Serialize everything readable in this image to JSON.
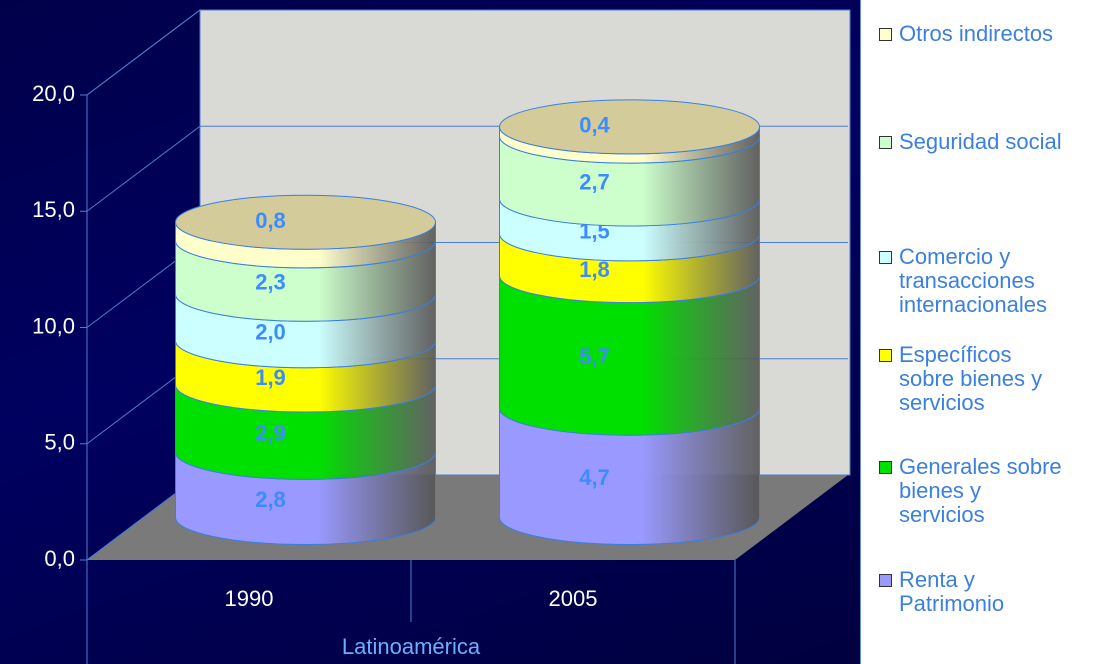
{
  "chart_data": {
    "type": "stacked_cylinder",
    "categories": [
      "1990",
      "2005"
    ],
    "xlabel": "Latinoamérica",
    "ylim": [
      0,
      20
    ],
    "yticks": [
      {
        "value": 0,
        "label": "0,0"
      },
      {
        "value": 5,
        "label": "5,0"
      },
      {
        "value": 10,
        "label": "10,0"
      },
      {
        "value": 15,
        "label": "15,0"
      },
      {
        "value": 20,
        "label": "20,0"
      }
    ],
    "grid": true,
    "legend": "right",
    "series": [
      {
        "name": "Renta y Patrimonio",
        "color": "#9999ff",
        "values": [
          2.8,
          4.7
        ],
        "value_labels": [
          "2,8",
          "4,7"
        ]
      },
      {
        "name": "Generales sobre bienes y servicios",
        "color": "#00e000",
        "values": [
          2.9,
          5.7
        ],
        "value_labels": [
          "2,9",
          "5,7"
        ]
      },
      {
        "name": "Específicos sobre bienes y servicios",
        "color": "#ffff00",
        "values": [
          1.9,
          1.8
        ],
        "value_labels": [
          "1,9",
          "1,8"
        ]
      },
      {
        "name": "Comercio y transacciones internacionales",
        "color": "#ccffff",
        "values": [
          2.0,
          1.5
        ],
        "value_labels": [
          "2,0",
          "1,5"
        ]
      },
      {
        "name": "Seguridad social",
        "color": "#ccffcc",
        "values": [
          2.3,
          2.7
        ],
        "value_labels": [
          "2,3",
          "2,7"
        ]
      },
      {
        "name": "Otros indirectos",
        "color": "#ffffcc",
        "values": [
          0.8,
          0.4
        ],
        "value_labels": [
          "0,8",
          "0,4"
        ]
      }
    ]
  }
}
